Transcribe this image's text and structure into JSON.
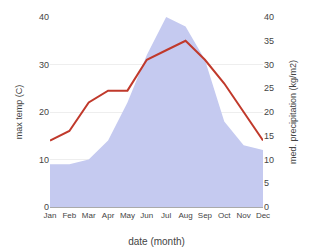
{
  "chart_data": {
    "type": "line",
    "xlabel": "date (month)",
    "ylabel": "max temp (C)",
    "y2label": "med. precipitation (kg/m2)",
    "categories": [
      "Jan",
      "Feb",
      "Mar",
      "Apr",
      "May",
      "Jun",
      "Jul",
      "Aug",
      "Sep",
      "Oct",
      "Nov",
      "Dec"
    ],
    "series": [
      {
        "type": "area",
        "axis": "y2",
        "color": "#c5caf0",
        "values": [
          9,
          9,
          10,
          14,
          22,
          32,
          40,
          38,
          31,
          18,
          13,
          12
        ]
      },
      {
        "type": "line",
        "color": "#c0392b",
        "values": [
          14,
          16,
          22,
          24.5,
          24.5,
          31,
          33,
          35,
          31,
          26,
          20,
          14
        ]
      }
    ],
    "ylim": [
      0,
      40
    ],
    "yticks": [
      0,
      10,
      20,
      30,
      40
    ],
    "y2lim": [
      0,
      40
    ],
    "y2ticks": [
      0,
      5,
      10,
      15,
      20,
      25,
      30,
      35,
      40
    ],
    "grid": true
  }
}
